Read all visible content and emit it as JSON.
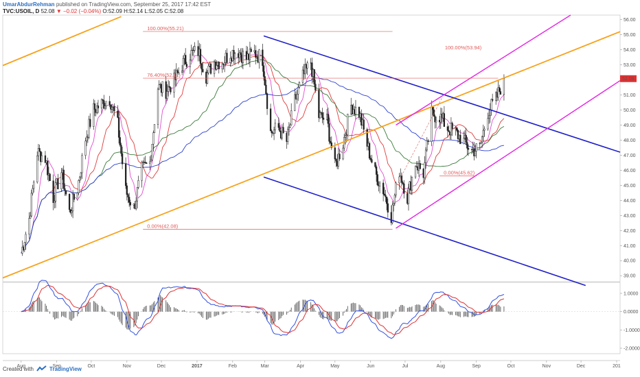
{
  "header": {
    "author": "UmarAbdurRehman",
    "published": "published on TradingView.com, September 25, 2017 17:42 EST",
    "symbol": "TVC:USOIL, D",
    "price": "52.08",
    "change": "−0.02 (−0.04%)",
    "ohlc": "O:52.09 H:52.14 L:52.05 C:52.08"
  },
  "footer": {
    "created_with": "Created with",
    "brand": "TradingView"
  },
  "colors": {
    "orange": "#f7a21b",
    "blue": "#1f1fc8",
    "magenta": "#e32ee3",
    "fib": "#e05a5a",
    "up": "#222222",
    "down": "#222222",
    "ma_fast": "#e04bd0",
    "ma_mid": "#e03a3a",
    "ma_slow": "#3a7a3a",
    "ma_long": "#2a3fd0",
    "macd": "#3050e0",
    "signal": "#e03030",
    "hist": "#444444",
    "last_price_bg": "#e03030"
  },
  "chart_data": {
    "type": "candlestick",
    "x_axis": [
      "Aug",
      "Sep",
      "Oct",
      "Nov",
      "Dec",
      "2017",
      "Feb",
      "Mar",
      "Apr",
      "May",
      "Jun",
      "Jul",
      "Aug",
      "Sep",
      "Oct",
      "Nov",
      "Dec",
      "201"
    ],
    "y_axis": [
      "56.00",
      "55.00",
      "54.00",
      "53.00",
      "52.00",
      "51.00",
      "50.00",
      "49.00",
      "48.00",
      "47.00",
      "46.00",
      "45.00",
      "44.00",
      "43.00",
      "42.00",
      "41.00",
      "40.00",
      "39.00"
    ],
    "ylim": [
      38.6,
      56.3
    ],
    "last_price": "52.08",
    "fib_labels": [
      {
        "text": "100.00%(55.21)",
        "price": 55.21,
        "date": "2016-11-15"
      },
      {
        "text": "76.40%(52.11)",
        "price": 52.11,
        "date": "2016-11-15"
      },
      {
        "text": "0.00%(42.08)",
        "price": 42.08,
        "date": "2016-11-15"
      },
      {
        "text": "100.00%(53.94)",
        "price": 53.94,
        "date": "2017-08-01"
      },
      {
        "text": "0.00%(45.62)",
        "price": 45.62,
        "date": "2017-07-31"
      }
    ],
    "osc_axis": [
      "1.0000",
      "0.0000",
      "-1.0000",
      "-2.0000"
    ],
    "osc_lim": [
      -2.3,
      1.6
    ],
    "closes": [
      [
        "2016-08-01",
        40.5
      ],
      [
        "2016-08-08",
        42.8
      ],
      [
        "2016-08-15",
        47.2
      ],
      [
        "2016-08-22",
        46.8
      ],
      [
        "2016-08-29",
        44.2
      ],
      [
        "2016-09-05",
        45.9
      ],
      [
        "2016-09-12",
        43.2
      ],
      [
        "2016-09-19",
        44.8
      ],
      [
        "2016-09-26",
        48.1
      ],
      [
        "2016-10-03",
        50.0
      ],
      [
        "2016-10-10",
        50.4
      ],
      [
        "2016-10-17",
        50.8
      ],
      [
        "2016-10-24",
        49.0
      ],
      [
        "2016-10-31",
        44.6
      ],
      [
        "2016-11-07",
        43.5
      ],
      [
        "2016-11-14",
        46.0
      ],
      [
        "2016-11-21",
        46.5
      ],
      [
        "2016-11-28",
        51.5
      ],
      [
        "2016-12-05",
        51.3
      ],
      [
        "2016-12-12",
        51.9
      ],
      [
        "2016-12-19",
        53.0
      ],
      [
        "2016-12-26",
        53.7
      ],
      [
        "2017-01-02",
        53.9
      ],
      [
        "2017-01-09",
        52.3
      ],
      [
        "2017-01-16",
        53.2
      ],
      [
        "2017-01-23",
        53.2
      ],
      [
        "2017-01-30",
        53.8
      ],
      [
        "2017-02-06",
        53.9
      ],
      [
        "2017-02-13",
        53.4
      ],
      [
        "2017-02-20",
        53.8
      ],
      [
        "2017-02-27",
        53.4
      ],
      [
        "2017-03-06",
        48.5
      ],
      [
        "2017-03-13",
        48.8
      ],
      [
        "2017-03-20",
        47.9
      ],
      [
        "2017-03-27",
        50.6
      ],
      [
        "2017-04-03",
        52.2
      ],
      [
        "2017-04-10",
        53.2
      ],
      [
        "2017-04-17",
        49.6
      ],
      [
        "2017-04-24",
        49.3
      ],
      [
        "2017-05-01",
        46.2
      ],
      [
        "2017-05-08",
        47.8
      ],
      [
        "2017-05-15",
        50.3
      ],
      [
        "2017-05-22",
        49.8
      ],
      [
        "2017-05-29",
        47.7
      ],
      [
        "2017-06-05",
        45.8
      ],
      [
        "2017-06-12",
        44.7
      ],
      [
        "2017-06-19",
        43.0
      ],
      [
        "2017-06-26",
        46.0
      ],
      [
        "2017-07-03",
        44.2
      ],
      [
        "2017-07-10",
        46.5
      ],
      [
        "2017-07-17",
        45.8
      ],
      [
        "2017-07-24",
        49.7
      ],
      [
        "2017-07-31",
        49.6
      ],
      [
        "2017-08-07",
        48.8
      ],
      [
        "2017-08-14",
        48.5
      ],
      [
        "2017-08-21",
        47.9
      ],
      [
        "2017-08-28",
        47.3
      ],
      [
        "2017-09-04",
        47.5
      ],
      [
        "2017-09-11",
        49.9
      ],
      [
        "2017-09-18",
        50.7
      ],
      [
        "2017-09-25",
        52.08
      ]
    ]
  }
}
